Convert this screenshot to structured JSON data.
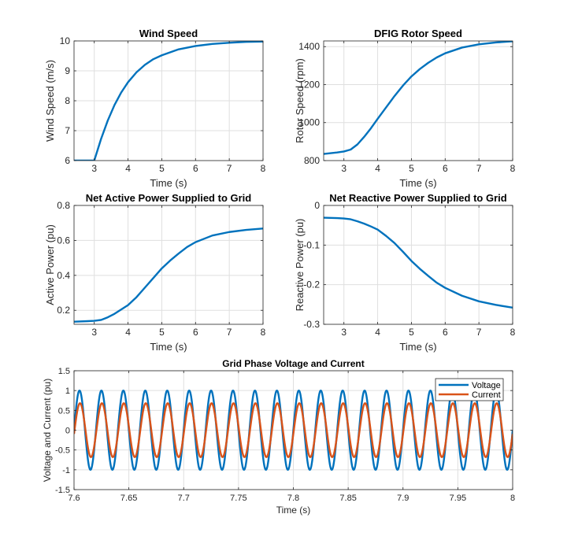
{
  "chart_data": [
    {
      "type": "line",
      "title": "Wind Speed",
      "xlabel": "Time (s)",
      "ylabel": "Wind Speed (m/s)",
      "xlim": [
        2.4,
        8
      ],
      "ylim": [
        6,
        10
      ],
      "xticks": [
        3,
        4,
        5,
        6,
        7,
        8
      ],
      "yticks": [
        6,
        7,
        8,
        9,
        10
      ],
      "grid": true,
      "series": [
        {
          "color": "#0072BD",
          "x": [
            2.4,
            2.98,
            3.0,
            3.2,
            3.4,
            3.6,
            3.8,
            4.0,
            4.25,
            4.5,
            4.75,
            5.0,
            5.5,
            6.0,
            6.5,
            7.0,
            7.5,
            8.0
          ],
          "y": [
            6.0,
            6.0,
            6.0,
            6.72,
            7.34,
            7.86,
            8.28,
            8.62,
            8.95,
            9.2,
            9.39,
            9.52,
            9.72,
            9.83,
            9.9,
            9.94,
            9.97,
            9.98
          ]
        }
      ]
    },
    {
      "type": "line",
      "title": "DFIG Rotor Speed",
      "xlabel": "Time (s)",
      "ylabel": "Rotor Speed (rpm)",
      "xlim": [
        2.4,
        8
      ],
      "ylim": [
        800,
        1430
      ],
      "xticks": [
        3,
        4,
        5,
        6,
        7,
        8
      ],
      "yticks": [
        800,
        1000,
        1200,
        1400
      ],
      "grid": true,
      "series": [
        {
          "color": "#0072BD",
          "x": [
            2.4,
            2.8,
            3.0,
            3.2,
            3.4,
            3.6,
            3.8,
            4.0,
            4.25,
            4.5,
            4.75,
            5.0,
            5.25,
            5.5,
            5.75,
            6.0,
            6.5,
            7.0,
            7.5,
            8.0
          ],
          "y": [
            835,
            843,
            848,
            858,
            885,
            925,
            970,
            1020,
            1080,
            1140,
            1195,
            1243,
            1282,
            1315,
            1343,
            1365,
            1395,
            1412,
            1422,
            1428
          ]
        }
      ]
    },
    {
      "type": "line",
      "title": "Net Active Power Supplied to Grid",
      "xlabel": "Time (s)",
      "ylabel": "Active Power (pu)",
      "xlim": [
        2.4,
        8
      ],
      "ylim": [
        0.12,
        0.8
      ],
      "xticks": [
        3,
        4,
        5,
        6,
        7,
        8
      ],
      "yticks": [
        0.2,
        0.4,
        0.6,
        0.8
      ],
      "grid": true,
      "series": [
        {
          "color": "#0072BD",
          "x": [
            2.4,
            2.8,
            3.0,
            3.2,
            3.4,
            3.6,
            3.8,
            4.0,
            4.25,
            4.5,
            4.75,
            5.0,
            5.25,
            5.5,
            5.75,
            6.0,
            6.5,
            7.0,
            7.5,
            8.0
          ],
          "y": [
            0.135,
            0.138,
            0.14,
            0.145,
            0.16,
            0.18,
            0.205,
            0.23,
            0.275,
            0.33,
            0.385,
            0.44,
            0.485,
            0.525,
            0.562,
            0.59,
            0.628,
            0.648,
            0.66,
            0.668
          ]
        }
      ]
    },
    {
      "type": "line",
      "title": "Net Reactive Power Supplied to Grid",
      "xlabel": "Time (s)",
      "ylabel": "Reactive Power (pu)",
      "xlim": [
        2.4,
        8
      ],
      "ylim": [
        -0.3,
        0
      ],
      "xticks": [
        3,
        4,
        5,
        6,
        7,
        8
      ],
      "yticks": [
        -0.3,
        -0.2,
        -0.1,
        0
      ],
      "grid": true,
      "series": [
        {
          "color": "#0072BD",
          "x": [
            2.4,
            2.8,
            3.0,
            3.2,
            3.4,
            3.6,
            3.8,
            4.0,
            4.25,
            4.5,
            4.75,
            5.0,
            5.25,
            5.5,
            5.75,
            6.0,
            6.5,
            7.0,
            7.5,
            8.0
          ],
          "y": [
            -0.031,
            -0.032,
            -0.033,
            -0.035,
            -0.04,
            -0.046,
            -0.053,
            -0.061,
            -0.077,
            -0.095,
            -0.117,
            -0.14,
            -0.16,
            -0.178,
            -0.195,
            -0.208,
            -0.228,
            -0.242,
            -0.251,
            -0.258
          ]
        }
      ]
    },
    {
      "type": "line",
      "title": "Grid Phase Voltage and Current",
      "xlabel": "Time (s)",
      "ylabel": "Voltage and Current (pu)",
      "xlim": [
        7.6,
        8
      ],
      "ylim": [
        -1.5,
        1.5
      ],
      "xticks": [
        7.6,
        7.65,
        7.7,
        7.75,
        7.8,
        7.85,
        7.9,
        7.95,
        8
      ],
      "yticks": [
        -1.5,
        -1,
        -0.5,
        0,
        0.5,
        1,
        1.5
      ],
      "grid": true,
      "legend_position": "top-right",
      "series": [
        {
          "name": "Voltage",
          "color": "#0072BD",
          "waveform": "sine",
          "amplitude": 1.0,
          "frequency_hz": 50,
          "phase_deg": 0
        },
        {
          "name": "Current",
          "color": "#D95319",
          "waveform": "sine",
          "amplitude": 0.68,
          "frequency_hz": 50,
          "phase_deg": -8
        }
      ]
    }
  ]
}
